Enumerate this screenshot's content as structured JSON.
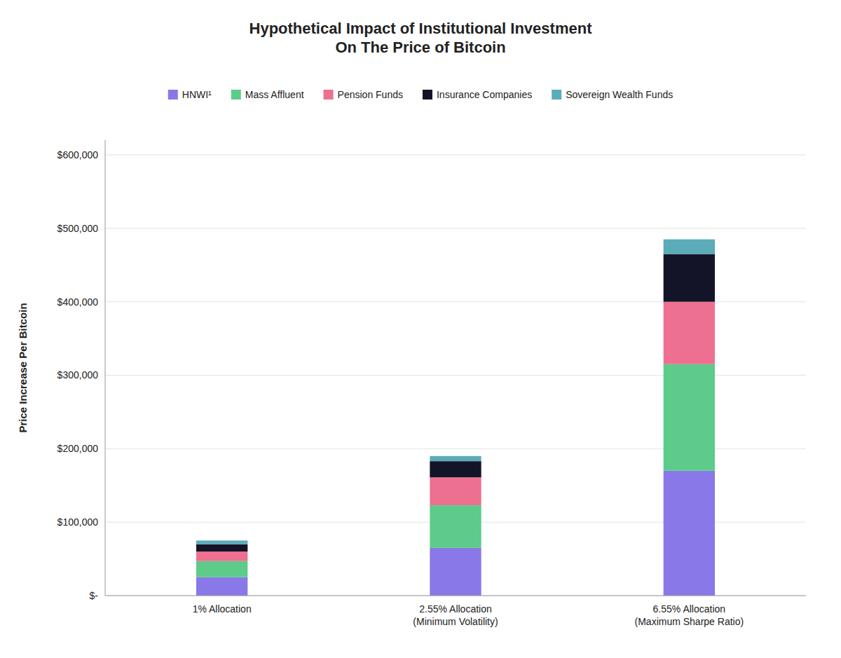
{
  "chart_data": {
    "type": "bar",
    "stacked": true,
    "title": "Hypothetical Impact of Institutional Investment\nOn The Price of Bitcoin",
    "ylabel": "Price Increase Per Bitcoin",
    "categories": [
      "1% Allocation",
      "2.55% Allocation\n(Minimum Volatility)",
      "6.55% Allocation\n(Maximum Sharpe Ratio)"
    ],
    "series": [
      {
        "name": "HNWI¹",
        "color": "#8878E8",
        "values": [
          25000,
          65000,
          170000
        ]
      },
      {
        "name": "Mass Affluent",
        "color": "#5DCB8A",
        "values": [
          22000,
          58000,
          145000
        ]
      },
      {
        "name": "Pension Funds",
        "color": "#EE7090",
        "values": [
          13000,
          38000,
          85000
        ]
      },
      {
        "name": "Insurance Companies",
        "color": "#141428",
        "values": [
          10000,
          22000,
          65000
        ]
      },
      {
        "name": "Sovereign Wealth Funds",
        "color": "#5AACB8",
        "values": [
          5000,
          7000,
          20000
        ]
      }
    ],
    "ylim": [
      0,
      620000
    ],
    "yticks": [
      {
        "value": 0,
        "label": "$-"
      },
      {
        "value": 100000,
        "label": "$100,000"
      },
      {
        "value": 200000,
        "label": "$200,000"
      },
      {
        "value": 300000,
        "label": "$300,000"
      },
      {
        "value": 400000,
        "label": "$400,000"
      },
      {
        "value": 500000,
        "label": "$500,000"
      },
      {
        "value": 600000,
        "label": "$600,000"
      }
    ],
    "grid": true,
    "legend": "top"
  }
}
